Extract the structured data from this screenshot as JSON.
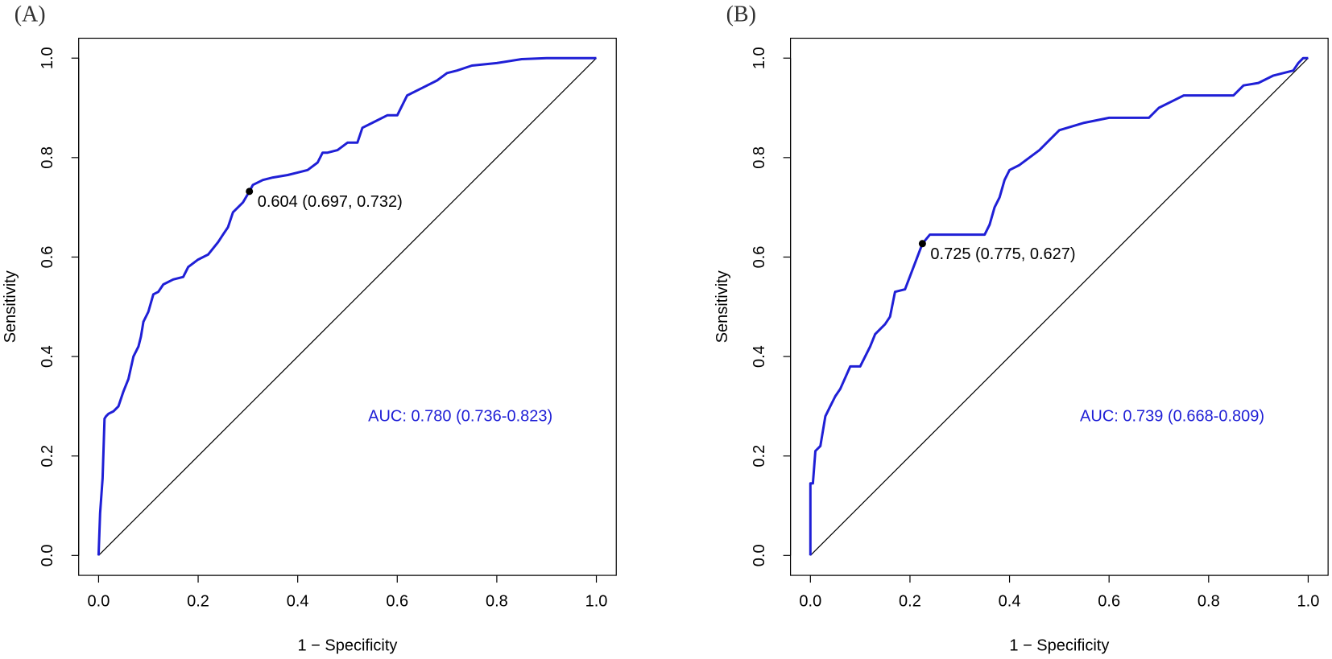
{
  "chart_data": [
    {
      "type": "line",
      "panel_label": "(A)",
      "xlabel": "1 − Specificity",
      "ylabel": "Sensitivity",
      "xlim": [
        -0.04,
        1.04
      ],
      "ylim": [
        -0.04,
        1.04
      ],
      "xticks": [
        {
          "value": 0,
          "label": "0.0"
        },
        {
          "value": 0.2,
          "label": "0.2"
        },
        {
          "value": 0.4,
          "label": "0.4"
        },
        {
          "value": 0.6,
          "label": "0.6"
        },
        {
          "value": 0.8,
          "label": "0.8"
        },
        {
          "value": 1,
          "label": "1.0"
        }
      ],
      "yticks": [
        {
          "value": 0,
          "label": "0.0"
        },
        {
          "value": 0.2,
          "label": "0.2"
        },
        {
          "value": 0.4,
          "label": "0.4"
        },
        {
          "value": 0.6,
          "label": "0.6"
        },
        {
          "value": 0.8,
          "label": "0.8"
        },
        {
          "value": 1,
          "label": "1.0"
        }
      ],
      "color": "#1f1fd6",
      "x": [
        0,
        0.003,
        0.008,
        0.012,
        0.015,
        0.02,
        0.03,
        0.04,
        0.05,
        0.06,
        0.07,
        0.08,
        0.085,
        0.09,
        0.1,
        0.11,
        0.12,
        0.13,
        0.15,
        0.17,
        0.18,
        0.2,
        0.22,
        0.24,
        0.25,
        0.26,
        0.27,
        0.28,
        0.29,
        0.303,
        0.31,
        0.33,
        0.35,
        0.38,
        0.4,
        0.42,
        0.44,
        0.45,
        0.46,
        0.48,
        0.5,
        0.52,
        0.53,
        0.55,
        0.56,
        0.58,
        0.6,
        0.62,
        0.63,
        0.65,
        0.68,
        0.7,
        0.72,
        0.75,
        0.8,
        0.85,
        0.9,
        0.95,
        1
      ],
      "values": [
        0,
        0.085,
        0.155,
        0.275,
        0.28,
        0.285,
        0.29,
        0.3,
        0.33,
        0.355,
        0.4,
        0.42,
        0.44,
        0.47,
        0.49,
        0.525,
        0.53,
        0.545,
        0.555,
        0.56,
        0.58,
        0.595,
        0.605,
        0.63,
        0.645,
        0.66,
        0.69,
        0.7,
        0.71,
        0.732,
        0.745,
        0.755,
        0.76,
        0.765,
        0.77,
        0.775,
        0.79,
        0.81,
        0.81,
        0.815,
        0.83,
        0.83,
        0.86,
        0.87,
        0.875,
        0.885,
        0.885,
        0.925,
        0.93,
        0.94,
        0.955,
        0.97,
        0.975,
        0.985,
        0.99,
        0.998,
        1,
        1,
        1
      ],
      "threshold_point": {
        "x": 0.303,
        "y": 0.732,
        "label": "0.604 (0.697, 0.732)"
      },
      "auc_label": "AUC: 0.780 (0.736-0.823)"
    },
    {
      "type": "line",
      "panel_label": "(B)",
      "xlabel": "1 − Specificity",
      "ylabel": "Sensitivity",
      "xlim": [
        -0.04,
        1.04
      ],
      "ylim": [
        -0.04,
        1.04
      ],
      "xticks": [
        {
          "value": 0,
          "label": "0.0"
        },
        {
          "value": 0.2,
          "label": "0.2"
        },
        {
          "value": 0.4,
          "label": "0.4"
        },
        {
          "value": 0.6,
          "label": "0.6"
        },
        {
          "value": 0.8,
          "label": "0.8"
        },
        {
          "value": 1,
          "label": "1.0"
        }
      ],
      "yticks": [
        {
          "value": 0,
          "label": "0.0"
        },
        {
          "value": 0.2,
          "label": "0.2"
        },
        {
          "value": 0.4,
          "label": "0.4"
        },
        {
          "value": 0.6,
          "label": "0.6"
        },
        {
          "value": 0.8,
          "label": "0.8"
        },
        {
          "value": 1,
          "label": "1.0"
        }
      ],
      "color": "#1f1fd6",
      "x": [
        0,
        0,
        0.005,
        0.01,
        0.02,
        0.03,
        0.04,
        0.05,
        0.06,
        0.08,
        0.1,
        0.12,
        0.13,
        0.15,
        0.16,
        0.17,
        0.19,
        0.225,
        0.24,
        0.35,
        0.36,
        0.37,
        0.38,
        0.39,
        0.4,
        0.42,
        0.44,
        0.46,
        0.48,
        0.5,
        0.55,
        0.6,
        0.68,
        0.7,
        0.73,
        0.75,
        0.85,
        0.87,
        0.9,
        0.93,
        0.97,
        0.98,
        0.99,
        1
      ],
      "values": [
        0,
        0.145,
        0.145,
        0.21,
        0.22,
        0.28,
        0.3,
        0.32,
        0.335,
        0.38,
        0.38,
        0.42,
        0.445,
        0.465,
        0.48,
        0.53,
        0.535,
        0.627,
        0.645,
        0.645,
        0.665,
        0.7,
        0.72,
        0.755,
        0.775,
        0.785,
        0.8,
        0.815,
        0.835,
        0.855,
        0.87,
        0.88,
        0.88,
        0.9,
        0.915,
        0.925,
        0.925,
        0.945,
        0.95,
        0.965,
        0.975,
        0.99,
        1,
        1
      ],
      "threshold_point": {
        "x": 0.225,
        "y": 0.627,
        "label": "0.725 (0.775, 0.627)"
      },
      "auc_label": "AUC: 0.739 (0.668-0.809)"
    }
  ]
}
